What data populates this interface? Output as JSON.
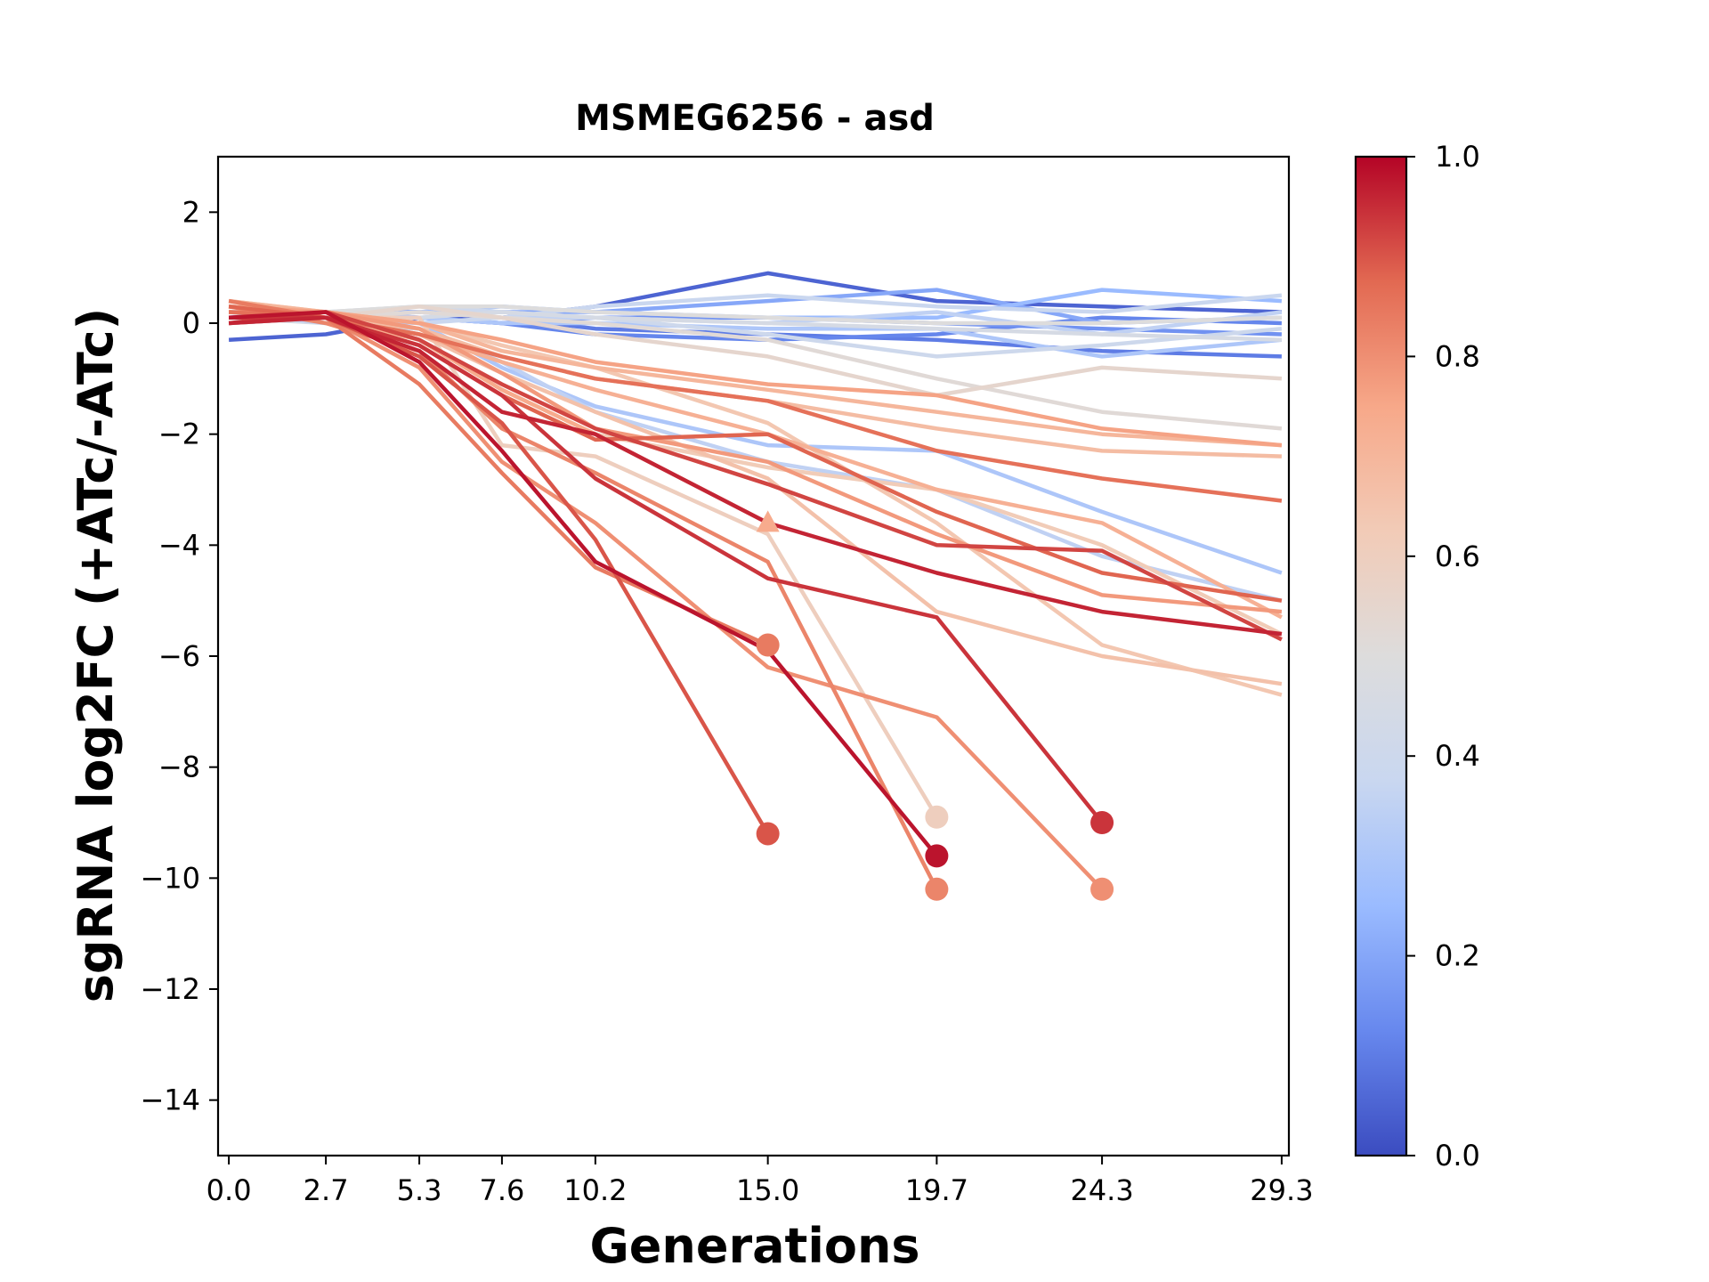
{
  "chart_data": {
    "type": "line",
    "title": "MSMEG6256 - asd",
    "xlabel": "Generations",
    "ylabel": "sgRNA log2FC (+ATc/-ATc)",
    "xlim": [
      -0.3,
      29.5
    ],
    "ylim": [
      -15,
      3
    ],
    "x_ticks": [
      0.0,
      2.7,
      5.3,
      7.6,
      10.2,
      15.0,
      19.7,
      24.3,
      29.3
    ],
    "x_tick_labels": [
      "0.0",
      "2.7",
      "5.3",
      "7.6",
      "10.2",
      "15.0",
      "19.7",
      "24.3",
      "29.3"
    ],
    "y_ticks": [
      2,
      0,
      -2,
      -4,
      -6,
      -8,
      -10,
      -12,
      -14
    ],
    "y_tick_labels": [
      "2",
      "0",
      "−2",
      "−4",
      "−6",
      "−8",
      "−10",
      "−12",
      "−14"
    ],
    "colorbar": {
      "colormap": "coolwarm",
      "range": [
        0.0,
        1.0
      ],
      "ticks": [
        1.0,
        0.8,
        0.6,
        0.4,
        0.2,
        0.0
      ],
      "tick_labels": [
        "1.0",
        "0.8",
        "0.6",
        "0.4",
        "0.2",
        "0.0"
      ],
      "stops": [
        "#3b4cc0",
        "#6788ee",
        "#9abbff",
        "#c9d7f0",
        "#dddcdc",
        "#f2cbb7",
        "#f7a889",
        "#e26952",
        "#b40426"
      ]
    },
    "x": [
      0.0,
      2.7,
      5.3,
      7.6,
      10.2,
      15.0,
      19.7,
      24.3,
      29.3
    ],
    "series": [
      {
        "c": 0.05,
        "values": [
          -0.3,
          -0.2,
          0.1,
          0.1,
          0.3,
          0.9,
          0.4,
          0.3,
          0.2
        ]
      },
      {
        "c": 0.1,
        "values": [
          0.1,
          0.2,
          0.2,
          0.1,
          -0.1,
          -0.2,
          -0.3,
          -0.5,
          -0.6
        ]
      },
      {
        "c": 0.12,
        "values": [
          0.0,
          0.1,
          0.1,
          0.0,
          -0.2,
          -0.3,
          -0.2,
          0.1,
          0.0
        ]
      },
      {
        "c": 0.15,
        "values": [
          0.2,
          0.2,
          0.1,
          0.0,
          0.1,
          0.1,
          0.0,
          -0.1,
          -0.2
        ]
      },
      {
        "c": 0.2,
        "values": [
          0.3,
          0.2,
          0.2,
          0.2,
          0.2,
          0.4,
          0.6,
          0.0,
          0.1
        ]
      },
      {
        "c": 0.25,
        "values": [
          0.2,
          0.1,
          0.2,
          0.3,
          0.2,
          0.1,
          0.1,
          0.6,
          0.4
        ]
      },
      {
        "c": 0.3,
        "values": [
          0.3,
          0.2,
          0.1,
          0.0,
          0.0,
          -0.1,
          -0.1,
          -0.6,
          -0.3
        ]
      },
      {
        "c": 0.35,
        "values": [
          0.1,
          0.1,
          0.2,
          0.1,
          0.1,
          0.0,
          0.2,
          -0.2,
          0.2
        ]
      },
      {
        "c": 0.38,
        "values": [
          0.0,
          0.1,
          0.0,
          0.1,
          0.3,
          0.5,
          0.3,
          0.2,
          0.5
        ]
      },
      {
        "c": 0.4,
        "values": [
          0.2,
          0.2,
          0.3,
          0.2,
          0.1,
          -0.2,
          -0.6,
          -0.4,
          -0.1
        ]
      },
      {
        "c": 0.45,
        "values": [
          0.1,
          0.0,
          0.1,
          0.2,
          0.1,
          0.0,
          -0.1,
          -0.2,
          -0.3
        ]
      },
      {
        "c": 0.5,
        "values": [
          0.3,
          0.2,
          0.3,
          0.3,
          0.2,
          0.1,
          0.0,
          0.0,
          0.1
        ]
      },
      {
        "c": 0.52,
        "values": [
          0.2,
          0.1,
          0.2,
          0.1,
          0.0,
          -0.3,
          -1.0,
          -1.6,
          -1.9
        ]
      },
      {
        "c": 0.55,
        "values": [
          0.2,
          0.1,
          0.3,
          0.1,
          -0.2,
          -0.6,
          -1.3,
          -0.8,
          -1.0
        ]
      },
      {
        "c": 0.3,
        "values": [
          0.1,
          0.1,
          0.0,
          -0.8,
          -1.5,
          -2.2,
          -2.3,
          -3.4,
          -4.5
        ]
      },
      {
        "c": 0.35,
        "values": [
          0.2,
          0.0,
          -0.1,
          -0.7,
          -1.6,
          -2.5,
          -3.0,
          -4.2,
          -5.0
        ]
      },
      {
        "c": 0.6,
        "values": [
          0.2,
          0.1,
          0.1,
          -2.2,
          -2.4,
          -3.8,
          -8.9,
          null,
          null
        ]
      },
      {
        "c": 0.62,
        "values": [
          0.4,
          0.2,
          -0.3,
          -1.2,
          -2.0,
          -2.6,
          -3.0,
          -4.0,
          -5.6
        ]
      },
      {
        "c": 0.64,
        "values": [
          0.3,
          0.2,
          0.0,
          -0.4,
          -0.8,
          -1.8,
          -3.6,
          -5.8,
          -6.7
        ]
      },
      {
        "c": 0.66,
        "values": [
          0.2,
          0.1,
          -0.2,
          -0.9,
          -1.6,
          -2.8,
          -5.2,
          -6.0,
          -6.5
        ]
      },
      {
        "c": 0.68,
        "values": [
          0.3,
          0.1,
          -0.1,
          -0.6,
          -1.0,
          -1.4,
          -1.9,
          -2.3,
          -2.4
        ]
      },
      {
        "c": 0.7,
        "values": [
          0.4,
          0.2,
          0.0,
          -0.5,
          -0.8,
          -1.2,
          -1.6,
          -2.0,
          -2.2
        ]
      },
      {
        "c": 0.72,
        "values": [
          0.2,
          0.1,
          -0.2,
          -0.7,
          -1.2,
          -2.0,
          -3.0,
          -3.6,
          -5.3
        ]
      },
      {
        "c": 0.74,
        "values": [
          0.1,
          0.1,
          -0.3,
          -1.2,
          -2.0,
          -3.6,
          null,
          null,
          null
        ]
      },
      {
        "c": 0.76,
        "values": [
          0.3,
          0.2,
          0.0,
          -0.3,
          -0.7,
          -1.1,
          -1.3,
          -1.9,
          -2.2
        ]
      },
      {
        "c": 0.78,
        "values": [
          0.2,
          0.2,
          -0.1,
          -0.9,
          -1.9,
          -2.5,
          -3.8,
          -4.9,
          -5.2
        ]
      },
      {
        "c": 0.8,
        "values": [
          0.0,
          0.1,
          -0.8,
          -2.5,
          -3.6,
          -6.2,
          -7.1,
          -10.2,
          null
        ]
      },
      {
        "c": 0.82,
        "values": [
          0.3,
          0.0,
          -0.5,
          -1.9,
          -2.7,
          -4.3,
          -10.2,
          null,
          null
        ]
      },
      {
        "c": 0.84,
        "values": [
          0.4,
          0.1,
          -1.1,
          -2.7,
          -4.4,
          -5.8,
          null,
          null,
          null
        ]
      },
      {
        "c": 0.86,
        "values": [
          0.2,
          0.1,
          -0.2,
          -0.6,
          -1.0,
          -1.4,
          -2.3,
          -2.8,
          -3.2
        ]
      },
      {
        "c": 0.88,
        "values": [
          0.3,
          0.1,
          -0.4,
          -1.3,
          -2.1,
          -2.0,
          -3.4,
          -4.5,
          -5.0
        ]
      },
      {
        "c": 0.9,
        "values": [
          0.1,
          0.1,
          -0.6,
          -1.8,
          -3.9,
          -9.2,
          null,
          null,
          null
        ]
      },
      {
        "c": 0.92,
        "values": [
          0.0,
          0.2,
          -0.3,
          -1.1,
          -1.9,
          -2.9,
          -4.0,
          -4.1,
          -5.7
        ]
      },
      {
        "c": 0.94,
        "values": [
          0.1,
          0.1,
          -0.4,
          -1.3,
          -2.8,
          -4.6,
          -5.3,
          -9.0,
          null
        ]
      },
      {
        "c": 0.96,
        "values": [
          0.0,
          0.1,
          -0.5,
          -1.6,
          -2.0,
          -3.6,
          -4.5,
          -5.2,
          -5.6
        ]
      },
      {
        "c": 0.98,
        "values": [
          0.1,
          0.2,
          -0.7,
          -2.3,
          -4.3,
          -5.9,
          -9.6,
          null,
          null
        ]
      }
    ],
    "terminal_markers": [
      {
        "x": 15.0,
        "y": -9.2,
        "c": 0.9,
        "shape": "circle"
      },
      {
        "x": 15.0,
        "y": -5.8,
        "c": 0.84,
        "shape": "circle"
      },
      {
        "x": 15.0,
        "y": -3.6,
        "c": 0.74,
        "shape": "triangle"
      },
      {
        "x": 19.7,
        "y": -8.9,
        "c": 0.6,
        "shape": "circle"
      },
      {
        "x": 19.7,
        "y": -9.6,
        "c": 0.98,
        "shape": "circle"
      },
      {
        "x": 19.7,
        "y": -10.2,
        "c": 0.82,
        "shape": "circle"
      },
      {
        "x": 24.3,
        "y": -9.0,
        "c": 0.94,
        "shape": "circle"
      },
      {
        "x": 24.3,
        "y": -10.2,
        "c": 0.8,
        "shape": "circle"
      }
    ]
  }
}
